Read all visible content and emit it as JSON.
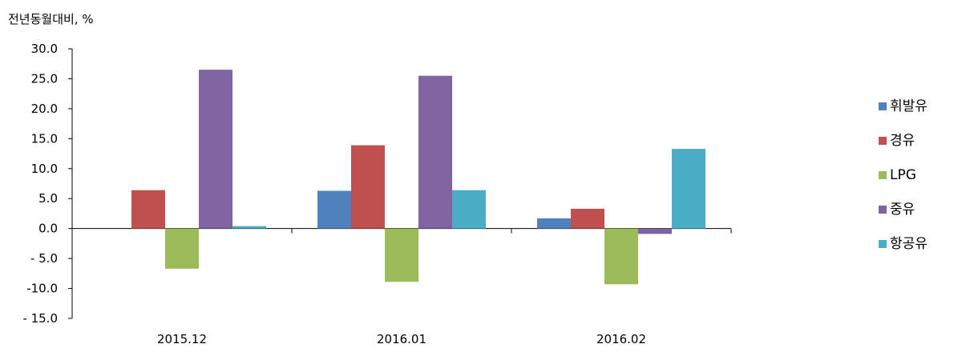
{
  "chart_data": {
    "type": "bar",
    "y_label": "전년동월대비, %",
    "categories": [
      "2015.12",
      "2016.01",
      "2016.02"
    ],
    "series": [
      {
        "name": "휘발유",
        "color": "#4f81bd",
        "values": [
          0,
          6.3,
          1.7
        ]
      },
      {
        "name": "경유",
        "color": "#c0504d",
        "values": [
          6.4,
          13.9,
          3.3
        ]
      },
      {
        "name": "LPG",
        "color": "#9bbb59",
        "values": [
          -6.7,
          -8.9,
          -9.3
        ]
      },
      {
        "name": "중유",
        "color": "#8064a2",
        "values": [
          26.5,
          25.5,
          -0.9
        ]
      },
      {
        "name": "항공유",
        "color": "#4bacc6",
        "values": [
          0.4,
          6.4,
          13.3
        ]
      }
    ],
    "ylim": [
      -15,
      30
    ],
    "yticks": [
      {
        "value": -15,
        "label": "- 15.0"
      },
      {
        "value": -10,
        "label": "-10.0"
      },
      {
        "value": -5,
        "label": "- 5.0"
      },
      {
        "value": 0,
        "label": "0.0"
      },
      {
        "value": 5,
        "label": "5.0"
      },
      {
        "value": 10,
        "label": "10.0"
      },
      {
        "value": 15,
        "label": "15.0"
      },
      {
        "value": 20,
        "label": "20.0"
      },
      {
        "value": 25,
        "label": "25.0"
      },
      {
        "value": 30,
        "label": "30.0"
      }
    ],
    "legend": "right"
  }
}
